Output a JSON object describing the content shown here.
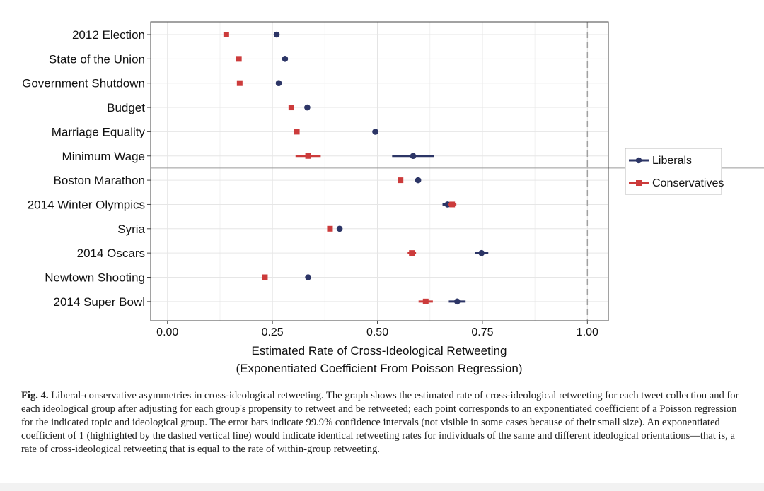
{
  "chart_data": {
    "type": "scatter",
    "categories": [
      "2012 Election",
      "State of the Union",
      "Government Shutdown",
      "Budget",
      "Marriage Equality",
      "Minimum Wage",
      "Boston Marathon",
      "2014 Winter Olympics",
      "Syria",
      "2014 Oscars",
      "Newtown Shooting",
      "2014 Super Bowl"
    ],
    "series": [
      {
        "name": "Liberals",
        "color": "#2c3566",
        "marker": "circle",
        "values": [
          0.26,
          0.28,
          0.265,
          0.333,
          0.495,
          0.585,
          0.597,
          0.667,
          0.41,
          0.748,
          0.335,
          0.69
        ],
        "ci_low": [
          0.26,
          0.275,
          0.262,
          0.33,
          0.488,
          0.535,
          0.594,
          0.655,
          0.407,
          0.732,
          0.333,
          0.67
        ],
        "ci_high": [
          0.26,
          0.285,
          0.268,
          0.336,
          0.502,
          0.635,
          0.6,
          0.679,
          0.413,
          0.764,
          0.337,
          0.71
        ]
      },
      {
        "name": "Conservatives",
        "color": "#cc3b3b",
        "marker": "square",
        "values": [
          0.14,
          0.17,
          0.172,
          0.295,
          0.308,
          0.335,
          0.555,
          0.678,
          0.387,
          0.582,
          0.232,
          0.615
        ],
        "ci_low": [
          0.138,
          0.168,
          0.17,
          0.292,
          0.305,
          0.305,
          0.552,
          0.668,
          0.385,
          0.572,
          0.23,
          0.598
        ],
        "ci_high": [
          0.142,
          0.172,
          0.174,
          0.298,
          0.311,
          0.365,
          0.558,
          0.688,
          0.389,
          0.592,
          0.234,
          0.632
        ]
      }
    ],
    "x_ticks": [
      "0.00",
      "0.25",
      "0.50",
      "0.75",
      "1.00"
    ],
    "x_tick_values": [
      0,
      0.25,
      0.5,
      0.75,
      1.0
    ],
    "xlim": [
      -0.04,
      1.05
    ],
    "reference_line": 1.0,
    "separator_after_index": 5,
    "xlabel_line1": "Estimated Rate of Cross-Ideological Retweeting",
    "xlabel_line2": "(Exponentiated Coefficient From Poisson Regression)",
    "grid": true,
    "legend_position": "right"
  },
  "caption": {
    "label": "Fig. 4.",
    "text": "Liberal-conservative asymmetries in cross-ideological retweeting. The graph shows the estimated rate of cross-ideological retweeting for each tweet collection and for each ideological group after adjusting for each group's propensity to retweet and be retweeted; each point corresponds to an exponentiated coefficient of a Poisson regression for the indicated topic and ideological group. The error bars indicate 99.9% confidence intervals (not visible in some cases because of their small size). An exponentiated coefficient of 1 (highlighted by the dashed vertical line) would indicate identical retweeting rates for individuals of the same and different ideological orientations—that is, a rate of cross-ideological retweeting that is equal to the rate of within-group retweeting."
  }
}
